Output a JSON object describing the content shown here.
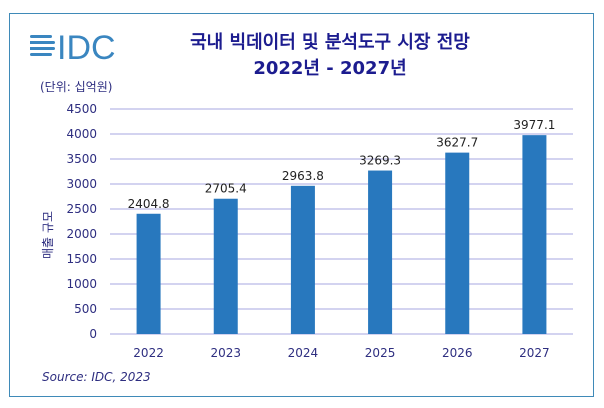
{
  "logo_text": "IDC",
  "colors": {
    "bar": "#2878be",
    "grid": "#b9b9e8",
    "text": "#2e2e80",
    "title": "#1c1c8f",
    "frame": "#3f8ab8"
  },
  "chart_data": {
    "type": "bar",
    "title": "국내 빅데이터 및 분석도구 시장 전망",
    "subtitle": "2022년 - 2027년",
    "unit_note": "(단위: 십억원)",
    "ylabel": "매출 규모",
    "xlabel": "",
    "categories": [
      "2022",
      "2023",
      "2024",
      "2025",
      "2026",
      "2027"
    ],
    "values": [
      2404.8,
      2705.4,
      2963.8,
      3269.3,
      3627.7,
      3977.1
    ],
    "data_labels": [
      "2404.8",
      "2705.4",
      "2963.8",
      "3269.3",
      "3627.7",
      "3977.1"
    ],
    "ylim": [
      0,
      4500
    ],
    "yticks": [
      0,
      500,
      1000,
      1500,
      2000,
      2500,
      3000,
      3500,
      4000,
      4500
    ],
    "grid": true,
    "legend": "none",
    "source": "Source: IDC, 2023"
  }
}
